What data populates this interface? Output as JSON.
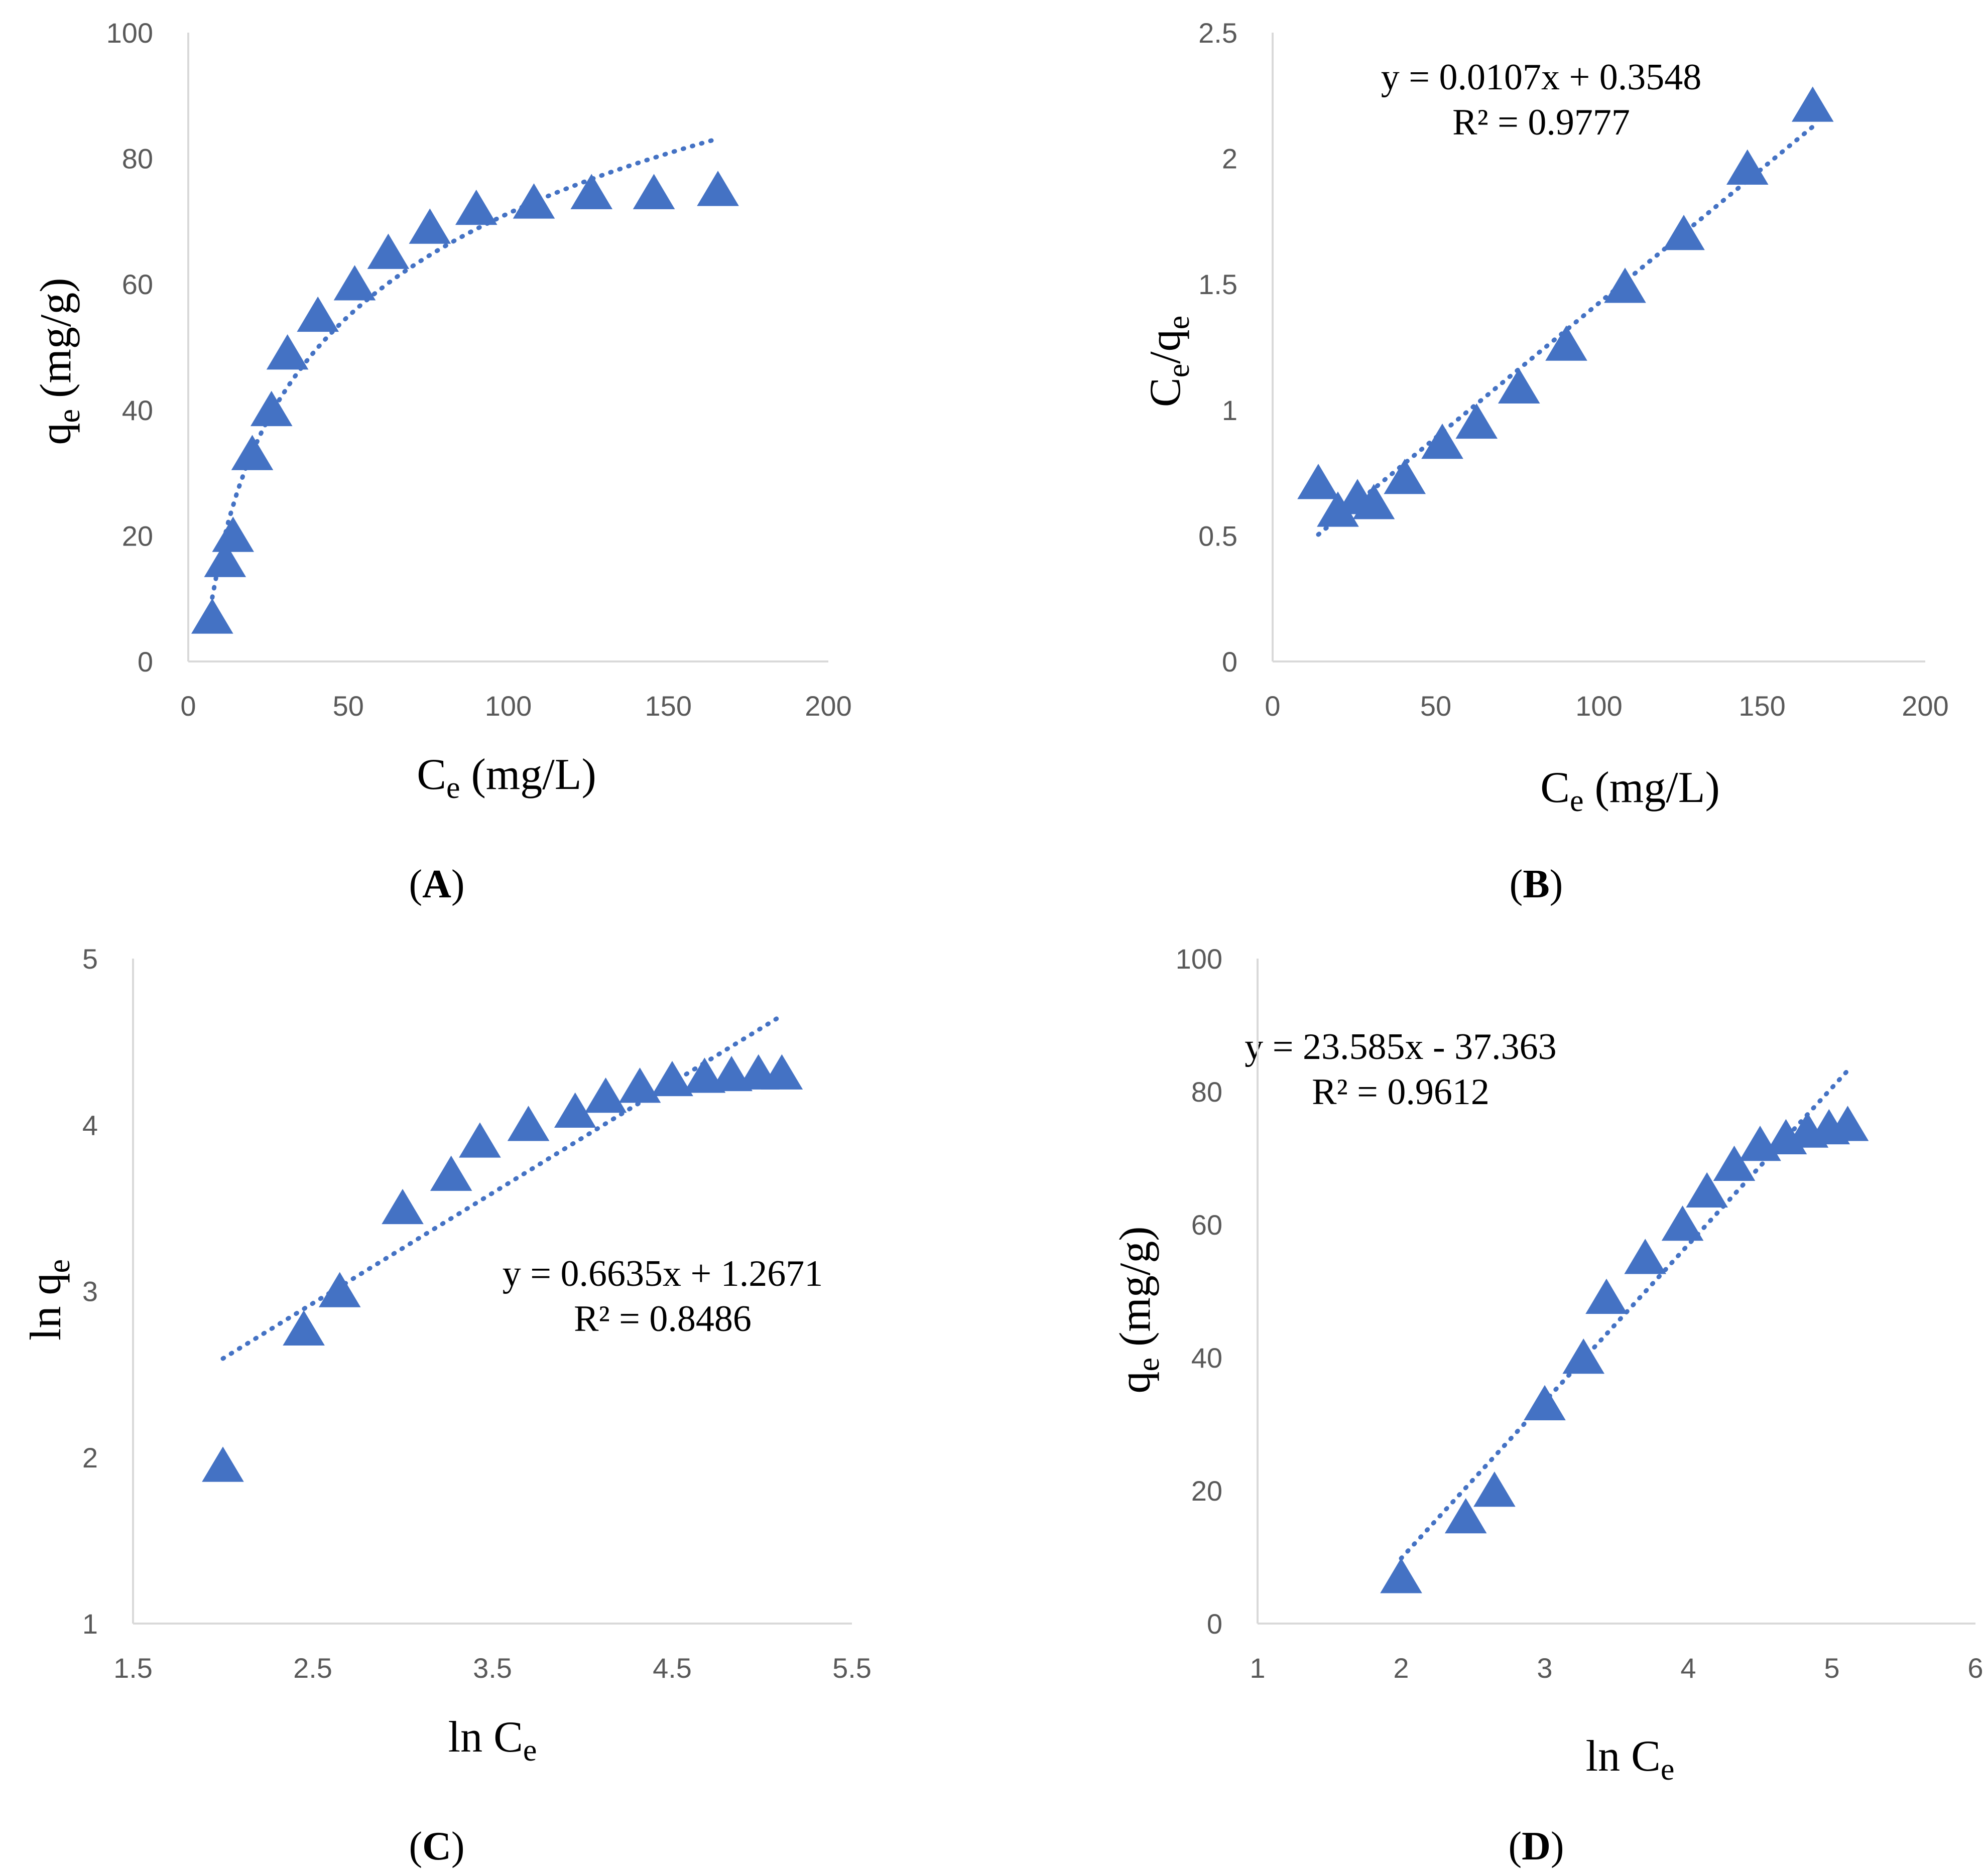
{
  "marker_color": "#4472C4",
  "axis_color": "#D9D9D9",
  "chart_data": [
    {
      "id": "A",
      "type": "scatter",
      "caption": "A",
      "xlabel": "C",
      "xlabel_sub": "e",
      "xlabel_rest": " (mg/L)",
      "ylabel": "q",
      "ylabel_sub": "e",
      "ylabel_rest": " (mg/g)",
      "xlim": [
        0,
        200
      ],
      "ylim": [
        0,
        100
      ],
      "xticks": [
        0,
        50,
        100,
        150,
        200
      ],
      "yticks": [
        0,
        20,
        40,
        60,
        80,
        100
      ],
      "x": [
        7.5,
        11.5,
        14,
        20,
        26,
        31,
        40.5,
        52,
        62.5,
        75.5,
        90,
        108,
        126,
        145.5,
        165.5
      ],
      "y": [
        7,
        16,
        20,
        33,
        40,
        49,
        55,
        60,
        65,
        69,
        72,
        73,
        74.5,
        74.5,
        75
      ],
      "trendline": {
        "kind": "log",
        "a": 23.585,
        "b": -37.363,
        "x_from": 7.5,
        "x_to": 165.5
      },
      "equation": "",
      "r2": ""
    },
    {
      "id": "B",
      "type": "scatter",
      "caption": "B",
      "xlabel": "C",
      "xlabel_sub": "e",
      "xlabel_rest": " (mg/L)",
      "ylabel": "C",
      "ylabel_sub": "e",
      "ylabel_mid": "/q",
      "ylabel_sub2": "e",
      "xlim": [
        0,
        200
      ],
      "ylim": [
        0,
        2.5
      ],
      "xticks": [
        0,
        50,
        100,
        150,
        200
      ],
      "yticks": [
        0,
        0.5,
        1,
        1.5,
        2,
        2.5
      ],
      "x": [
        14,
        20,
        26,
        31,
        40.5,
        52,
        62.5,
        75.5,
        90,
        108,
        126,
        145.5,
        165.5
      ],
      "y": [
        0.71,
        0.6,
        0.65,
        0.63,
        0.73,
        0.87,
        0.95,
        1.09,
        1.26,
        1.49,
        1.7,
        1.96,
        2.21
      ],
      "trendline": {
        "kind": "linear",
        "a": 0.0107,
        "b": 0.3548,
        "x_from": 14,
        "x_to": 165.5
      },
      "equation": "y = 0.0107x + 0.3548",
      "r2": "R² = 0.9777"
    },
    {
      "id": "C",
      "type": "scatter",
      "caption": "C",
      "xlabel": "ln C",
      "xlabel_sub": "e",
      "xlabel_rest": "",
      "ylabel": "ln q",
      "ylabel_sub": "e",
      "ylabel_rest": "",
      "xlim": [
        1.5,
        5.5
      ],
      "ylim": [
        1,
        5
      ],
      "xticks": [
        1.5,
        2.5,
        3.5,
        4.5,
        5.5
      ],
      "yticks": [
        1,
        2,
        3,
        4,
        5
      ],
      "x": [
        2.0,
        2.45,
        2.65,
        3.0,
        3.27,
        3.43,
        3.7,
        3.96,
        4.13,
        4.32,
        4.5,
        4.68,
        4.83,
        4.98,
        5.11
      ],
      "y": [
        1.95,
        2.77,
        3.0,
        3.5,
        3.7,
        3.9,
        4.0,
        4.08,
        4.17,
        4.23,
        4.27,
        4.29,
        4.3,
        4.31,
        4.31
      ],
      "trendline": {
        "kind": "linear",
        "a": 0.6635,
        "b": 1.2671,
        "x_from": 2.0,
        "x_to": 5.11
      },
      "equation": "y = 0.6635x + 1.2671",
      "r2": "R² = 0.8486"
    },
    {
      "id": "D",
      "type": "scatter",
      "caption": "D",
      "xlabel": "ln C",
      "xlabel_sub": "e",
      "xlabel_rest": "",
      "ylabel": "q",
      "ylabel_sub": "e",
      "ylabel_rest": " (mg/g)",
      "xlim": [
        1,
        6
      ],
      "ylim": [
        0,
        100
      ],
      "xticks": [
        1,
        2,
        3,
        4,
        5,
        6
      ],
      "yticks": [
        0,
        20,
        40,
        60,
        80,
        100
      ],
      "x": [
        2.0,
        2.45,
        2.65,
        3.0,
        3.27,
        3.43,
        3.7,
        3.96,
        4.13,
        4.32,
        4.5,
        4.68,
        4.83,
        4.98,
        5.11
      ],
      "y": [
        7,
        16,
        20,
        33,
        40,
        49,
        55,
        60,
        65,
        69,
        72,
        73,
        74,
        74.5,
        75
      ],
      "trendline": {
        "kind": "linear",
        "a": 23.585,
        "b": -37.363,
        "x_from": 2.0,
        "x_to": 5.11
      },
      "equation": "y = 23.585x - 37.363",
      "r2": "R² = 0.9612"
    }
  ]
}
